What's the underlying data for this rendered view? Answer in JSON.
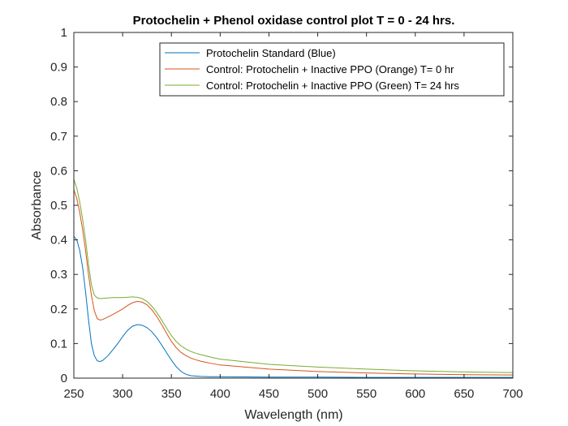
{
  "chart_data": {
    "type": "line",
    "title": "Protochelin + Phenol oxidase control plot T = 0 - 24 hrs.",
    "xlabel": "Wavelength (nm)",
    "ylabel": "Absorbance",
    "xlim": [
      250,
      700
    ],
    "ylim": [
      0,
      1
    ],
    "xticks": [
      250,
      300,
      350,
      400,
      450,
      500,
      550,
      600,
      650,
      700
    ],
    "yticks": [
      0,
      0.1,
      0.2,
      0.3,
      0.4,
      0.5,
      0.6,
      0.7,
      0.8,
      0.9,
      1
    ],
    "xtick_labels": [
      "250",
      "300",
      "350",
      "400",
      "450",
      "500",
      "550",
      "600",
      "650",
      "700"
    ],
    "ytick_labels": [
      "0",
      "0.1",
      "0.2",
      "0.3",
      "0.4",
      "0.5",
      "0.6",
      "0.7",
      "0.8",
      "0.9",
      "1"
    ],
    "grid": false,
    "legend_position": "top-right",
    "series": [
      {
        "name": "Protochelin Standard (Blue)",
        "color": "#0072BD",
        "x": [
          250,
          253,
          256,
          259,
          262,
          265,
          268,
          271,
          274,
          277,
          280,
          285,
          290,
          295,
          300,
          305,
          310,
          315,
          320,
          325,
          330,
          335,
          340,
          345,
          350,
          355,
          360,
          365,
          370,
          375,
          380,
          390,
          400,
          450,
          500,
          550,
          600,
          650,
          700
        ],
        "y": [
          0.41,
          0.4,
          0.37,
          0.32,
          0.25,
          0.17,
          0.1,
          0.065,
          0.05,
          0.048,
          0.052,
          0.065,
          0.082,
          0.1,
          0.12,
          0.138,
          0.15,
          0.155,
          0.153,
          0.146,
          0.134,
          0.117,
          0.096,
          0.074,
          0.052,
          0.033,
          0.019,
          0.011,
          0.007,
          0.006,
          0.005,
          0.004,
          0.004,
          0.003,
          0.003,
          0.002,
          0.002,
          0.002,
          0.002
        ]
      },
      {
        "name": "Control: Protochelin + Inactive PPO (Orange) T= 0 hr",
        "color": "#D95319",
        "x": [
          250,
          253,
          256,
          259,
          262,
          265,
          268,
          271,
          274,
          277,
          280,
          285,
          290,
          295,
          300,
          305,
          310,
          315,
          320,
          325,
          330,
          335,
          340,
          345,
          350,
          355,
          360,
          365,
          370,
          375,
          380,
          390,
          400,
          450,
          500,
          550,
          600,
          650,
          700
        ],
        "y": [
          0.545,
          0.52,
          0.48,
          0.43,
          0.37,
          0.3,
          0.24,
          0.195,
          0.172,
          0.168,
          0.17,
          0.177,
          0.184,
          0.192,
          0.2,
          0.21,
          0.218,
          0.222,
          0.22,
          0.212,
          0.198,
          0.178,
          0.155,
          0.13,
          0.106,
          0.088,
          0.074,
          0.065,
          0.058,
          0.053,
          0.049,
          0.043,
          0.038,
          0.026,
          0.019,
          0.015,
          0.012,
          0.01,
          0.009
        ]
      },
      {
        "name": "Control: Protochelin + Inactive PPO (Green) T= 24 hrs",
        "color": "#77AC30",
        "x": [
          250,
          253,
          256,
          259,
          262,
          265,
          268,
          271,
          274,
          277,
          280,
          285,
          290,
          295,
          300,
          305,
          310,
          315,
          320,
          325,
          330,
          335,
          340,
          345,
          350,
          355,
          360,
          365,
          370,
          375,
          380,
          390,
          400,
          450,
          500,
          550,
          600,
          650,
          700
        ],
        "y": [
          0.575,
          0.55,
          0.51,
          0.46,
          0.4,
          0.33,
          0.27,
          0.24,
          0.232,
          0.23,
          0.231,
          0.232,
          0.233,
          0.233,
          0.233,
          0.234,
          0.235,
          0.234,
          0.23,
          0.222,
          0.208,
          0.19,
          0.168,
          0.145,
          0.123,
          0.106,
          0.093,
          0.084,
          0.077,
          0.072,
          0.068,
          0.061,
          0.055,
          0.04,
          0.032,
          0.026,
          0.021,
          0.018,
          0.016
        ]
      }
    ]
  }
}
